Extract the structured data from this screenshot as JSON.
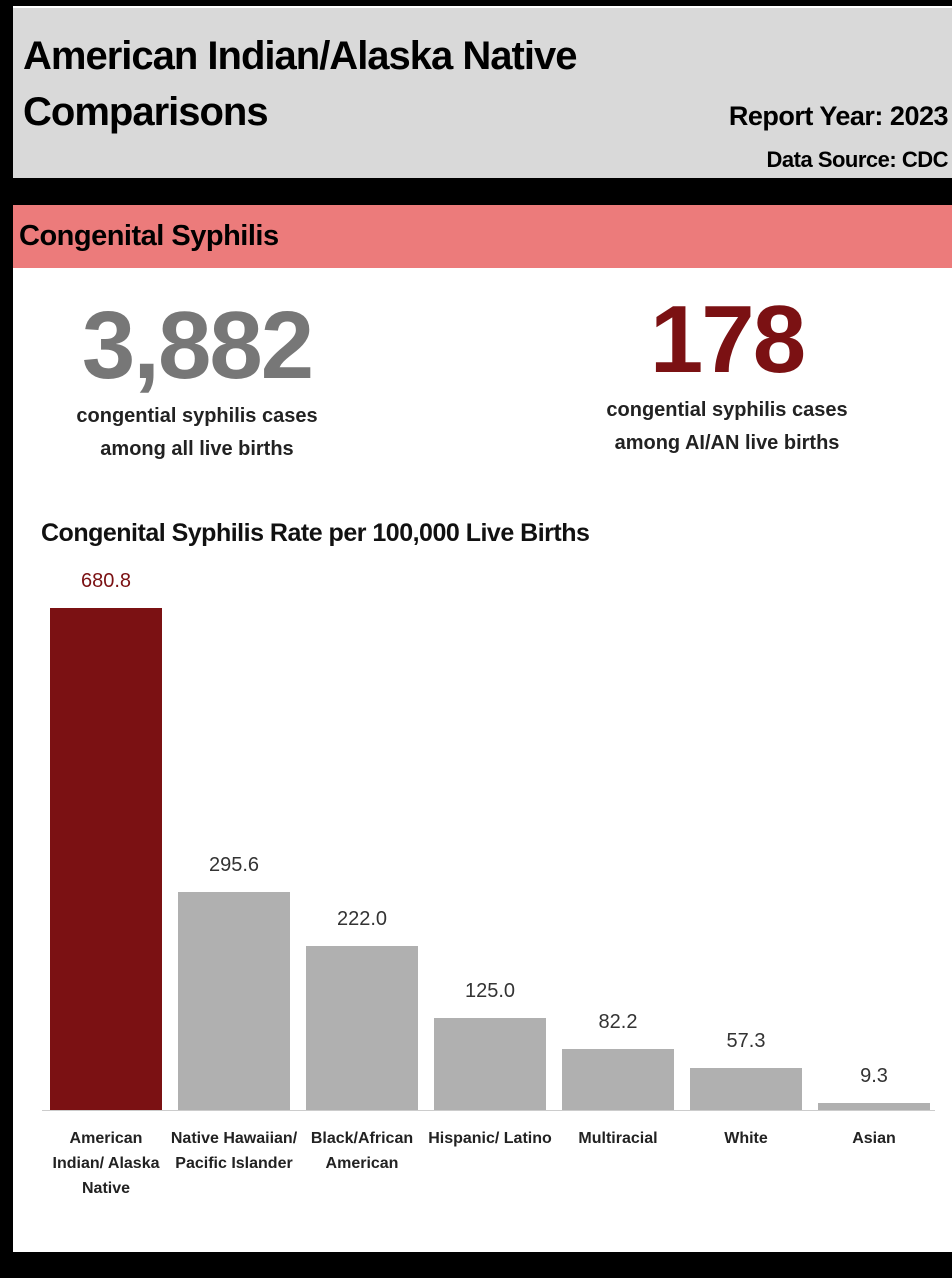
{
  "header": {
    "title": "American Indian/Alaska Native Comparisons",
    "report_year": "Report Year: 2023",
    "data_source": "Data Source: CDC"
  },
  "section": "Congenital Syphilis",
  "stats": [
    {
      "value": "3,882",
      "caption": "congential syphilis cases among all live births"
    },
    {
      "value": "178",
      "caption": "congential syphilis cases among AI/AN live births"
    }
  ],
  "chart_data": {
    "type": "bar",
    "title": "Congenital Syphilis Rate per 100,000 Live Births",
    "categories": [
      "American Indian/ Alaska Native",
      "Native Hawaiian/ Pacific Islander",
      "Black/African American",
      "Hispanic/ Latino",
      "Multiracial",
      "White",
      "Asian"
    ],
    "values": [
      680.8,
      295.6,
      222.0,
      125.0,
      82.2,
      57.3,
      9.3
    ],
    "value_labels": [
      "680.8",
      "295.6",
      "222.0",
      "125.0",
      "82.2",
      "57.3",
      "9.3"
    ],
    "colors": [
      "#7b1113",
      "#b0b0b0",
      "#b0b0b0",
      "#b0b0b0",
      "#b0b0b0",
      "#b0b0b0",
      "#b0b0b0"
    ]
  }
}
